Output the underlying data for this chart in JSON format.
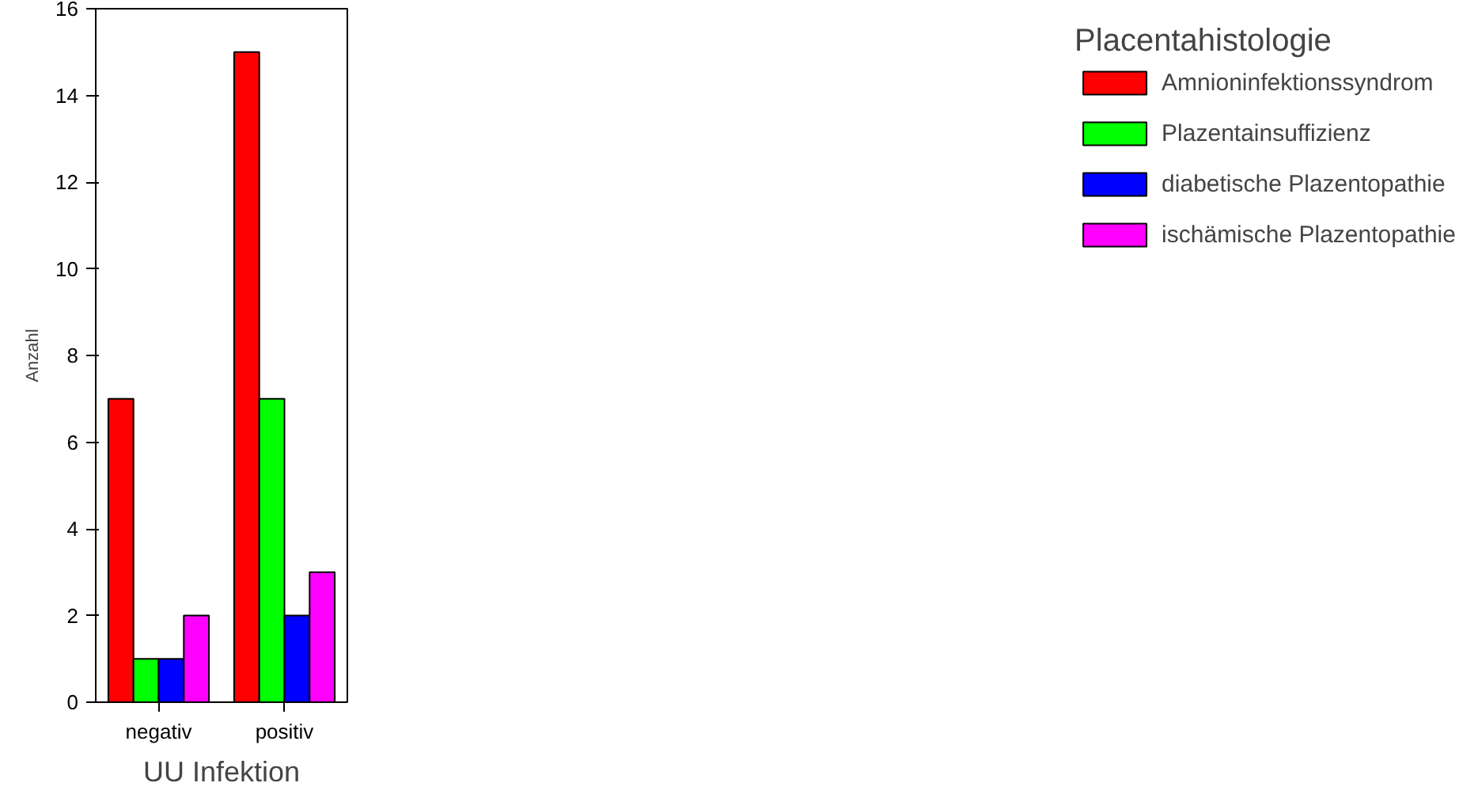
{
  "chart_data": {
    "type": "bar",
    "xlabel": "UU Infektion",
    "ylabel": "Anzahl",
    "legend_title": "Placentahistologie",
    "categories": [
      "negativ",
      "positiv"
    ],
    "series": [
      {
        "name": "Amnioninfektionssyndrom",
        "color": "#ff0000",
        "values": [
          7,
          15
        ]
      },
      {
        "name": "Plazentainsuffizienz",
        "color": "#00ff00",
        "values": [
          1,
          7
        ]
      },
      {
        "name": "diabetische Plazentopathie",
        "color": "#0000ff",
        "values": [
          1,
          2
        ]
      },
      {
        "name": "ischämische Plazentopathie",
        "color": "#ff00ff",
        "values": [
          2,
          3
        ]
      }
    ],
    "ylim": [
      0,
      16
    ],
    "yticks": [
      0,
      2,
      4,
      6,
      8,
      10,
      12,
      14,
      16
    ],
    "grid": false,
    "legend": "right"
  }
}
